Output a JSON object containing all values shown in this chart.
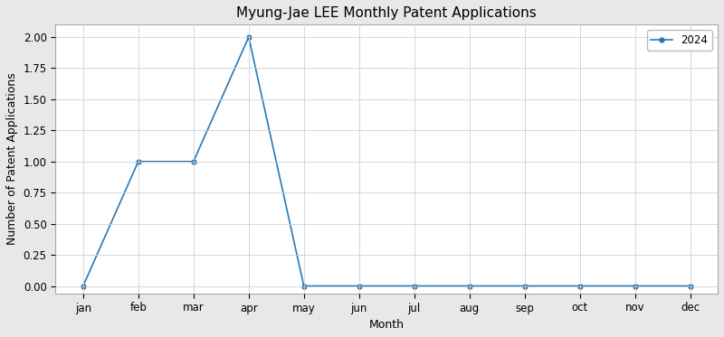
{
  "title": "Myung-Jae LEE Monthly Patent Applications",
  "xlabel": "Month",
  "ylabel": "Number of Patent Applications",
  "months": [
    "jan",
    "feb",
    "mar",
    "apr",
    "may",
    "jun",
    "jul",
    "aug",
    "sep",
    "oct",
    "nov",
    "dec"
  ],
  "values_2024": [
    0,
    1,
    1,
    2,
    0,
    0,
    0,
    0,
    0,
    0,
    0,
    0
  ],
  "legend_label": "2024",
  "line_color": "#2878b5",
  "marker": "o",
  "markersize": 3.5,
  "linewidth": 1.2,
  "ylim": [
    -0.06,
    2.1
  ],
  "yticks": [
    0.0,
    0.25,
    0.5,
    0.75,
    1.0,
    1.25,
    1.5,
    1.75,
    2.0
  ],
  "grid": true,
  "figure_background_color": "#e8e8e8",
  "plot_background_color": "#ffffff",
  "title_fontsize": 11,
  "axis_label_fontsize": 9,
  "tick_fontsize": 8.5,
  "legend_fontsize": 8.5
}
